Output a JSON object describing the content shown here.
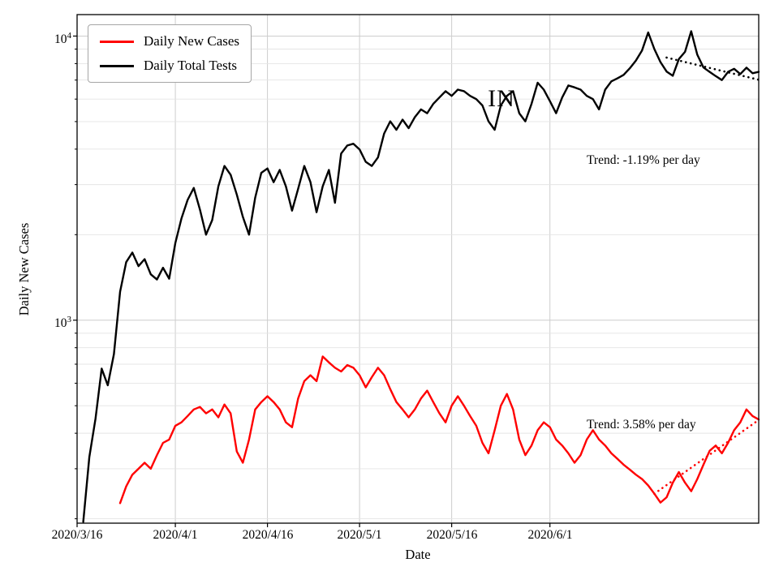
{
  "chart_data": {
    "type": "line",
    "title": "",
    "xlabel": "Date",
    "ylabel": "Daily New Cases",
    "region_label": "IN",
    "y_scale": "log",
    "ylim": [
      193,
      11900
    ],
    "grid": "both",
    "legend_position": "upper-left",
    "n_points": 112,
    "x_start": "2020/3/16",
    "x_unit": "day index from 2020/3/16",
    "x_tick_labels": [
      "2020/3/16",
      "2020/4/1",
      "2020/4/16",
      "2020/5/1",
      "2020/5/16",
      "2020/6/1"
    ],
    "x_tick_indices": [
      0,
      16,
      31,
      46,
      61,
      77
    ],
    "y_ticks": [
      {
        "base": "10",
        "exp": "4"
      },
      {
        "base": "10",
        "exp": "3"
      }
    ],
    "y_grid_major": [
      1000,
      10000
    ],
    "y_grid_minor": [
      200,
      300,
      400,
      500,
      600,
      700,
      800,
      900,
      2000,
      3000,
      4000,
      5000,
      6000,
      7000,
      8000,
      9000
    ],
    "series": [
      {
        "name": "Daily New Cases",
        "color": "#ff0000",
        "values": [
          null,
          null,
          null,
          null,
          null,
          null,
          null,
          227,
          260,
          286,
          300,
          315,
          300,
          335,
          370,
          380,
          425,
          437,
          460,
          485,
          495,
          470,
          485,
          455,
          505,
          470,
          345,
          315,
          380,
          485,
          515,
          540,
          515,
          485,
          437,
          420,
          530,
          610,
          640,
          610,
          745,
          710,
          680,
          660,
          695,
          680,
          640,
          580,
          630,
          680,
          640,
          572,
          515,
          485,
          455,
          485,
          530,
          565,
          515,
          470,
          437,
          500,
          540,
          500,
          460,
          425,
          370,
          340,
          410,
          500,
          550,
          485,
          380,
          335,
          362,
          410,
          437,
          420,
          380,
          362,
          340,
          315,
          335,
          380,
          410,
          380,
          362,
          340,
          325,
          310,
          298,
          286,
          276,
          262,
          245,
          228,
          238,
          268,
          292,
          268,
          250,
          276,
          310,
          347,
          362,
          340,
          370,
          410,
          437,
          485,
          460,
          447
        ]
      },
      {
        "name": "Daily Total Tests",
        "color": "#000000",
        "values": [
          null,
          195,
          330,
          450,
          675,
          590,
          760,
          1260,
          1600,
          1730,
          1550,
          1640,
          1450,
          1390,
          1530,
          1400,
          1870,
          2280,
          2650,
          2920,
          2450,
          2000,
          2250,
          2960,
          3490,
          3250,
          2770,
          2310,
          2000,
          2700,
          3300,
          3420,
          3060,
          3380,
          2960,
          2430,
          2900,
          3490,
          3060,
          2400,
          2960,
          3380,
          2590,
          3860,
          4120,
          4180,
          3990,
          3610,
          3490,
          3740,
          4540,
          5010,
          4680,
          5080,
          4740,
          5180,
          5520,
          5350,
          5770,
          6080,
          6400,
          6160,
          6480,
          6400,
          6160,
          6000,
          5700,
          5010,
          4680,
          5700,
          6160,
          6400,
          5350,
          5010,
          5770,
          6850,
          6480,
          5900,
          5350,
          6080,
          6700,
          6600,
          6480,
          6160,
          6000,
          5520,
          6480,
          6930,
          7100,
          7300,
          7700,
          8200,
          8900,
          10300,
          9000,
          8100,
          7500,
          7250,
          8300,
          8800,
          10400,
          8600,
          7750,
          7480,
          7230,
          7000,
          7480,
          7670,
          7350,
          7740,
          7400,
          7480
        ]
      }
    ],
    "trend_lines": [
      {
        "label": "Trend: -1.19% per day",
        "series": "Daily Total Tests",
        "color": "#000000",
        "style": "dotted",
        "start_index": 96,
        "end_index": 111,
        "start_value": 8400,
        "pct_per_day": -1.19
      },
      {
        "label": "Trend: 3.58% per day",
        "series": "Daily New Cases",
        "color": "#ff0000",
        "style": "dotted",
        "start_index": 94,
        "end_index": 111,
        "start_value": 245,
        "pct_per_day": 3.58
      }
    ]
  }
}
